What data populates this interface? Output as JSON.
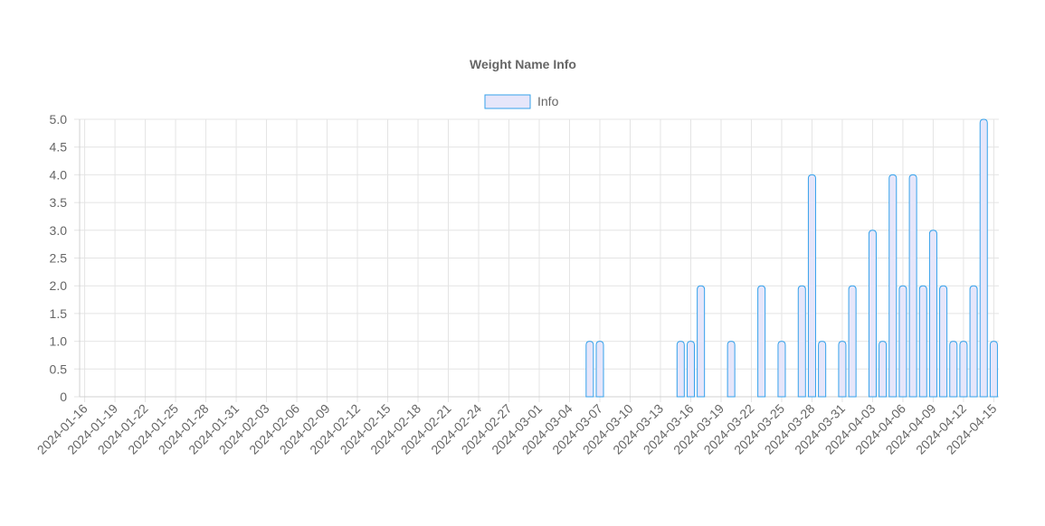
{
  "chart_data": {
    "type": "bar",
    "title": "Weight Name Info",
    "xlabel": "",
    "ylabel": "",
    "ylim": [
      0,
      5
    ],
    "yticks": [
      "0",
      "0.5",
      "1.0",
      "1.5",
      "2.0",
      "2.5",
      "3.0",
      "3.5",
      "4.0",
      "4.5",
      "5.0"
    ],
    "grid": true,
    "legend_position": "top-center",
    "x_start": "2024-01-16",
    "x_end": "2024-04-15",
    "xtick_labels": [
      "2024-01-16",
      "2024-01-19",
      "2024-01-22",
      "2024-01-25",
      "2024-01-28",
      "2024-01-31",
      "2024-02-03",
      "2024-02-06",
      "2024-02-09",
      "2024-02-12",
      "2024-02-15",
      "2024-02-18",
      "2024-02-21",
      "2024-02-24",
      "2024-02-27",
      "2024-03-01",
      "2024-03-04",
      "2024-03-07",
      "2024-03-10",
      "2024-03-13",
      "2024-03-16",
      "2024-03-19",
      "2024-03-22",
      "2024-03-25",
      "2024-03-28",
      "2024-03-31",
      "2024-04-03",
      "2024-04-06",
      "2024-04-09",
      "2024-04-12",
      "2024-04-15"
    ],
    "series": [
      {
        "name": "Info",
        "color": "#36a2eb",
        "fill": "#e6e6fa",
        "points": [
          {
            "x": "2024-03-06",
            "y": 1
          },
          {
            "x": "2024-03-07",
            "y": 1
          },
          {
            "x": "2024-03-15",
            "y": 1
          },
          {
            "x": "2024-03-16",
            "y": 1
          },
          {
            "x": "2024-03-17",
            "y": 2
          },
          {
            "x": "2024-03-20",
            "y": 1
          },
          {
            "x": "2024-03-23",
            "y": 2
          },
          {
            "x": "2024-03-25",
            "y": 1
          },
          {
            "x": "2024-03-27",
            "y": 2
          },
          {
            "x": "2024-03-28",
            "y": 4
          },
          {
            "x": "2024-03-29",
            "y": 1
          },
          {
            "x": "2024-03-31",
            "y": 1
          },
          {
            "x": "2024-04-01",
            "y": 2
          },
          {
            "x": "2024-04-03",
            "y": 3
          },
          {
            "x": "2024-04-04",
            "y": 1
          },
          {
            "x": "2024-04-05",
            "y": 4
          },
          {
            "x": "2024-04-06",
            "y": 2
          },
          {
            "x": "2024-04-07",
            "y": 4
          },
          {
            "x": "2024-04-08",
            "y": 2
          },
          {
            "x": "2024-04-09",
            "y": 3
          },
          {
            "x": "2024-04-10",
            "y": 2
          },
          {
            "x": "2024-04-11",
            "y": 1
          },
          {
            "x": "2024-04-12",
            "y": 1
          },
          {
            "x": "2024-04-13",
            "y": 2
          },
          {
            "x": "2024-04-14",
            "y": 5
          },
          {
            "x": "2024-04-15",
            "y": 1
          }
        ]
      }
    ]
  }
}
